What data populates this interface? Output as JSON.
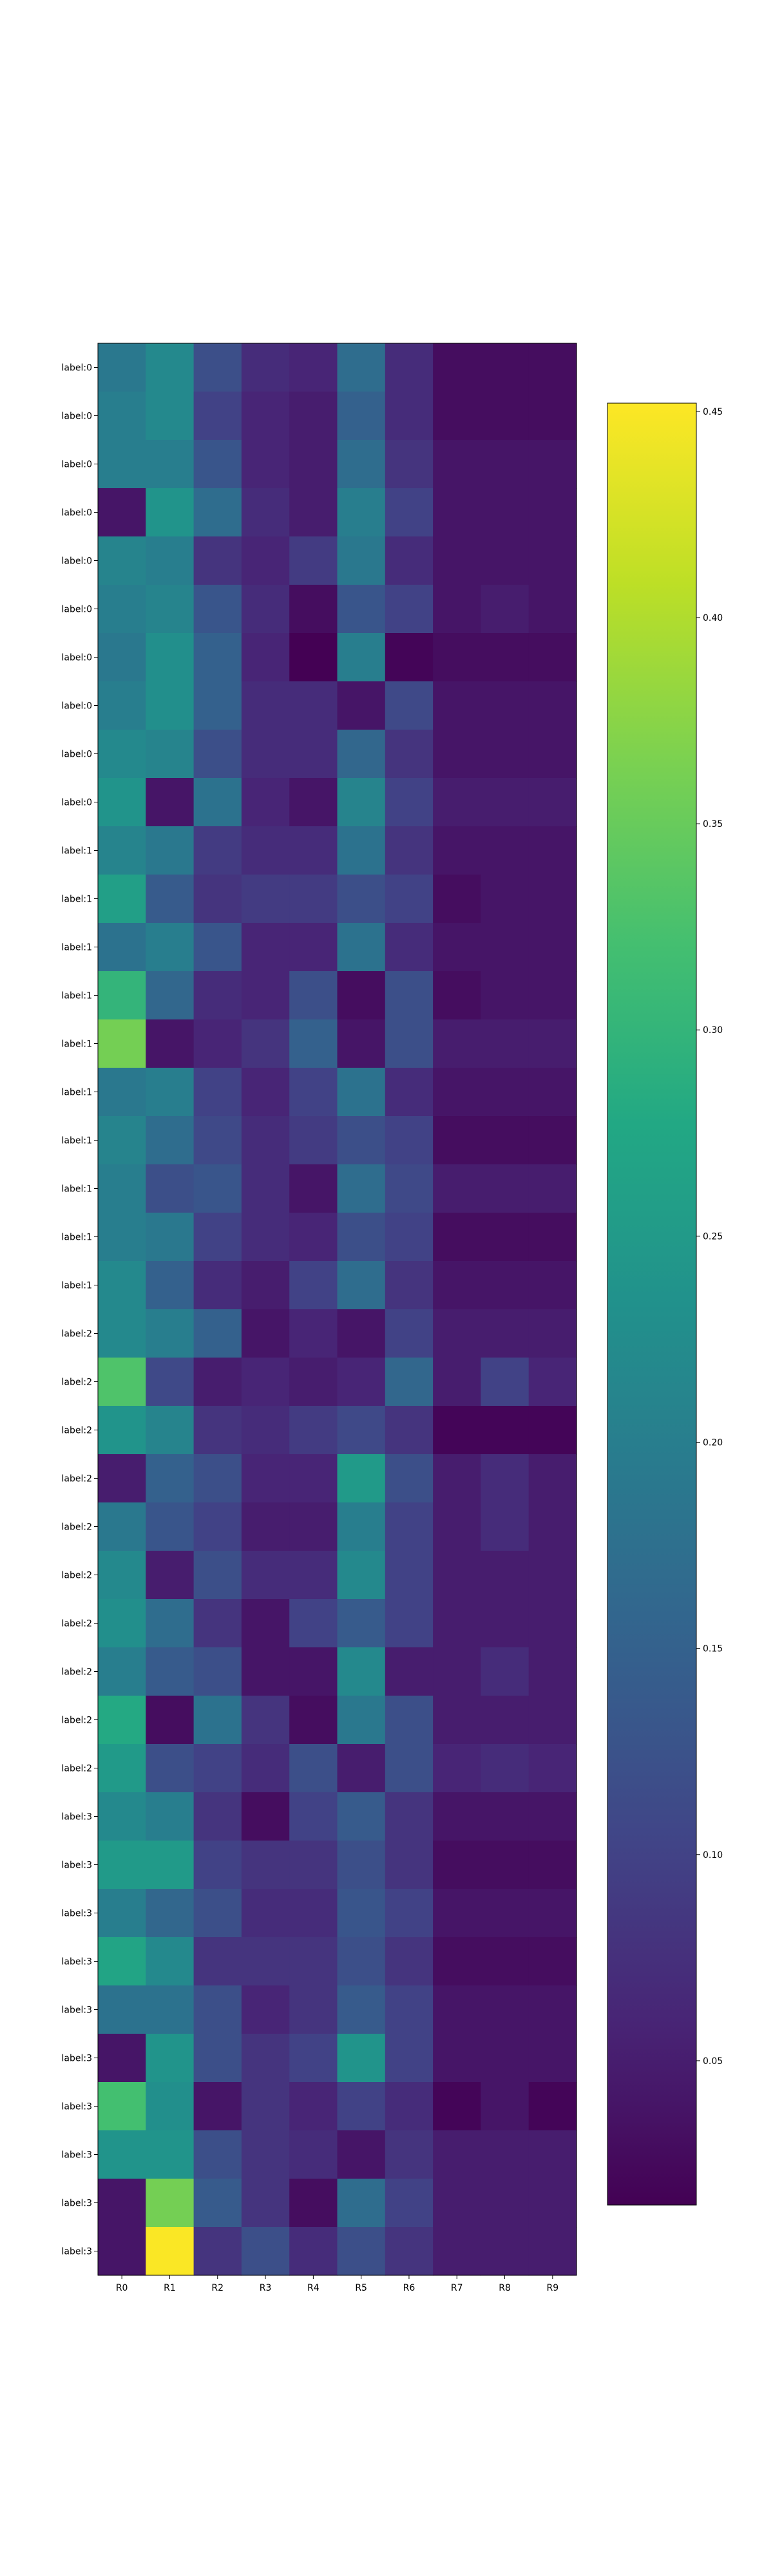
{
  "chart_data": {
    "type": "heatmap",
    "colormap": "viridis",
    "title": "",
    "xlabel": "",
    "ylabel": "",
    "grid": false,
    "legend": "colorbar-right",
    "x_labels": [
      "R0",
      "R1",
      "R2",
      "R3",
      "R4",
      "R5",
      "R6",
      "R7",
      "R8",
      "R9"
    ],
    "y_labels": [
      "label:0",
      "label:0",
      "label:0",
      "label:0",
      "label:0",
      "label:0",
      "label:0",
      "label:0",
      "label:0",
      "label:0",
      "label:1",
      "label:1",
      "label:1",
      "label:1",
      "label:1",
      "label:1",
      "label:1",
      "label:1",
      "label:1",
      "label:1",
      "label:2",
      "label:2",
      "label:2",
      "label:2",
      "label:2",
      "label:2",
      "label:2",
      "label:2",
      "label:2",
      "label:2",
      "label:3",
      "label:3",
      "label:3",
      "label:3",
      "label:3",
      "label:3",
      "label:3",
      "label:3",
      "label:3",
      "label:3"
    ],
    "colorbar": {
      "vmin": 0.015,
      "vmax": 0.452,
      "ticks": [
        0.05,
        0.1,
        0.15,
        0.2,
        0.25,
        0.3,
        0.35,
        0.4,
        0.45
      ],
      "tick_labels": [
        "0.05",
        "0.10",
        "0.15",
        "0.20",
        "0.25",
        "0.30",
        "0.35",
        "0.40",
        "0.45"
      ]
    },
    "values": [
      [
        0.19,
        0.22,
        0.12,
        0.07,
        0.06,
        0.17,
        0.07,
        0.03,
        0.03,
        0.03
      ],
      [
        0.2,
        0.22,
        0.1,
        0.06,
        0.05,
        0.15,
        0.07,
        0.03,
        0.03,
        0.03
      ],
      [
        0.2,
        0.2,
        0.13,
        0.06,
        0.05,
        0.17,
        0.08,
        0.04,
        0.04,
        0.04
      ],
      [
        0.04,
        0.24,
        0.17,
        0.07,
        0.05,
        0.2,
        0.1,
        0.04,
        0.04,
        0.04
      ],
      [
        0.21,
        0.2,
        0.08,
        0.06,
        0.09,
        0.19,
        0.07,
        0.04,
        0.04,
        0.04
      ],
      [
        0.2,
        0.21,
        0.13,
        0.07,
        0.03,
        0.13,
        0.1,
        0.04,
        0.05,
        0.04
      ],
      [
        0.19,
        0.23,
        0.15,
        0.06,
        0.015,
        0.2,
        0.02,
        0.03,
        0.03,
        0.03
      ],
      [
        0.2,
        0.23,
        0.15,
        0.07,
        0.07,
        0.04,
        0.11,
        0.04,
        0.04,
        0.04
      ],
      [
        0.22,
        0.21,
        0.12,
        0.07,
        0.07,
        0.16,
        0.08,
        0.04,
        0.04,
        0.04
      ],
      [
        0.24,
        0.04,
        0.18,
        0.06,
        0.04,
        0.21,
        0.1,
        0.05,
        0.05,
        0.05
      ],
      [
        0.21,
        0.19,
        0.09,
        0.07,
        0.07,
        0.18,
        0.08,
        0.04,
        0.04,
        0.04
      ],
      [
        0.26,
        0.14,
        0.08,
        0.09,
        0.09,
        0.12,
        0.1,
        0.03,
        0.04,
        0.04
      ],
      [
        0.18,
        0.2,
        0.13,
        0.06,
        0.06,
        0.18,
        0.07,
        0.04,
        0.04,
        0.04
      ],
      [
        0.3,
        0.16,
        0.07,
        0.06,
        0.12,
        0.03,
        0.12,
        0.03,
        0.04,
        0.04
      ],
      [
        0.36,
        0.04,
        0.06,
        0.08,
        0.15,
        0.04,
        0.12,
        0.05,
        0.05,
        0.05
      ],
      [
        0.19,
        0.2,
        0.1,
        0.06,
        0.1,
        0.18,
        0.07,
        0.04,
        0.04,
        0.04
      ],
      [
        0.21,
        0.17,
        0.11,
        0.07,
        0.09,
        0.12,
        0.1,
        0.03,
        0.03,
        0.03
      ],
      [
        0.2,
        0.12,
        0.13,
        0.07,
        0.04,
        0.17,
        0.11,
        0.05,
        0.05,
        0.05
      ],
      [
        0.2,
        0.19,
        0.1,
        0.07,
        0.06,
        0.12,
        0.1,
        0.03,
        0.03,
        0.03
      ],
      [
        0.22,
        0.15,
        0.07,
        0.05,
        0.1,
        0.17,
        0.08,
        0.04,
        0.04,
        0.04
      ],
      [
        0.22,
        0.2,
        0.15,
        0.04,
        0.06,
        0.04,
        0.1,
        0.05,
        0.05,
        0.05
      ],
      [
        0.33,
        0.11,
        0.05,
        0.06,
        0.05,
        0.06,
        0.16,
        0.05,
        0.1,
        0.06
      ],
      [
        0.24,
        0.21,
        0.08,
        0.07,
        0.09,
        0.11,
        0.08,
        0.02,
        0.02,
        0.02
      ],
      [
        0.05,
        0.15,
        0.12,
        0.06,
        0.06,
        0.25,
        0.12,
        0.05,
        0.07,
        0.05
      ],
      [
        0.19,
        0.13,
        0.1,
        0.05,
        0.05,
        0.2,
        0.1,
        0.05,
        0.07,
        0.05
      ],
      [
        0.22,
        0.05,
        0.12,
        0.07,
        0.07,
        0.22,
        0.1,
        0.05,
        0.05,
        0.05
      ],
      [
        0.23,
        0.17,
        0.08,
        0.04,
        0.1,
        0.14,
        0.1,
        0.05,
        0.05,
        0.05
      ],
      [
        0.2,
        0.14,
        0.12,
        0.04,
        0.04,
        0.22,
        0.05,
        0.05,
        0.07,
        0.05
      ],
      [
        0.28,
        0.03,
        0.18,
        0.08,
        0.03,
        0.19,
        0.12,
        0.05,
        0.05,
        0.05
      ],
      [
        0.25,
        0.12,
        0.1,
        0.07,
        0.12,
        0.05,
        0.12,
        0.06,
        0.07,
        0.06
      ],
      [
        0.22,
        0.2,
        0.08,
        0.03,
        0.1,
        0.14,
        0.08,
        0.04,
        0.04,
        0.04
      ],
      [
        0.25,
        0.25,
        0.1,
        0.08,
        0.08,
        0.12,
        0.08,
        0.03,
        0.03,
        0.03
      ],
      [
        0.2,
        0.16,
        0.12,
        0.07,
        0.07,
        0.13,
        0.1,
        0.04,
        0.04,
        0.04
      ],
      [
        0.27,
        0.22,
        0.08,
        0.08,
        0.08,
        0.12,
        0.08,
        0.03,
        0.03,
        0.03
      ],
      [
        0.18,
        0.18,
        0.12,
        0.06,
        0.08,
        0.14,
        0.1,
        0.04,
        0.04,
        0.04
      ],
      [
        0.04,
        0.24,
        0.12,
        0.08,
        0.1,
        0.24,
        0.1,
        0.04,
        0.04,
        0.04
      ],
      [
        0.32,
        0.23,
        0.04,
        0.08,
        0.06,
        0.1,
        0.07,
        0.02,
        0.04,
        0.02
      ],
      [
        0.24,
        0.24,
        0.12,
        0.08,
        0.07,
        0.04,
        0.08,
        0.05,
        0.05,
        0.05
      ],
      [
        0.04,
        0.36,
        0.14,
        0.08,
        0.03,
        0.17,
        0.1,
        0.05,
        0.05,
        0.05
      ],
      [
        0.04,
        0.45,
        0.08,
        0.12,
        0.07,
        0.12,
        0.08,
        0.05,
        0.05,
        0.05
      ]
    ]
  }
}
